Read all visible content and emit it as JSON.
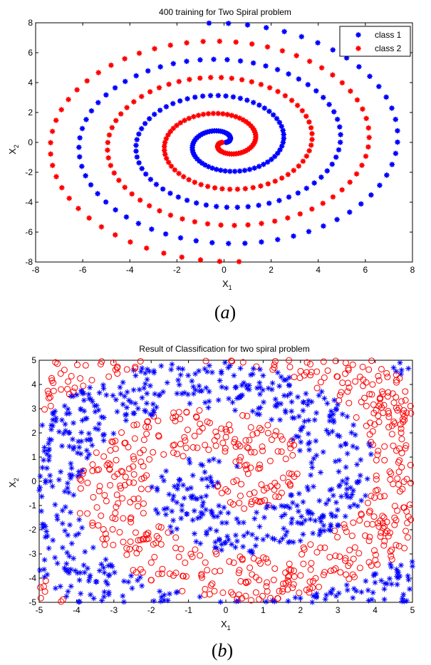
{
  "chart_data": [
    {
      "type": "scatter",
      "title": "400 training for Two Spiral problem",
      "xlabel": "X",
      "xlabel_sub": "1",
      "ylabel": "X",
      "ylabel_sub": "2",
      "xlim": [
        -8,
        8
      ],
      "ylim": [
        -8,
        8
      ],
      "xticks": [
        -8,
        -6,
        -4,
        -2,
        0,
        2,
        4,
        6,
        8
      ],
      "yticks": [
        -8,
        -6,
        -4,
        -2,
        0,
        2,
        4,
        6,
        8
      ],
      "grid": false,
      "legend_position": "top-right",
      "caption": "(a)",
      "points_per_class": 200,
      "series": [
        {
          "name": "class 1",
          "color": "#0000ff",
          "marker": "star",
          "spiral": {
            "center": [
              0.0,
              0.0
            ],
            "theta_start": 0.0,
            "theta_end": 20.5,
            "r_start": 0.08,
            "r_end": 8.0,
            "direction": 1
          }
        },
        {
          "name": "class 2",
          "color": "#ff0000",
          "marker": "star",
          "spiral": {
            "center": [
              0.0,
              0.0
            ],
            "theta_start": 0.0,
            "theta_end": 20.5,
            "r_start": 0.08,
            "r_end": 8.0,
            "direction": -1
          }
        }
      ]
    },
    {
      "type": "scatter",
      "title": "Result of Classification for two spiral problem",
      "xlabel": "X",
      "xlabel_sub": "1",
      "ylabel": "X",
      "ylabel_sub": "2",
      "xlim": [
        -5,
        5
      ],
      "ylim": [
        -5,
        5
      ],
      "xticks": [
        -5,
        -4,
        -3,
        -2,
        -1,
        0,
        1,
        2,
        3,
        4,
        5
      ],
      "yticks": [
        -5,
        -4,
        -3,
        -2,
        -1,
        0,
        1,
        2,
        3,
        4,
        5
      ],
      "grid": false,
      "caption": "(b)",
      "n_points": 1400,
      "series": [
        {
          "color": "#0000ff",
          "marker": "asterisk"
        },
        {
          "color": "#ff0000",
          "marker": "circle"
        }
      ]
    }
  ]
}
